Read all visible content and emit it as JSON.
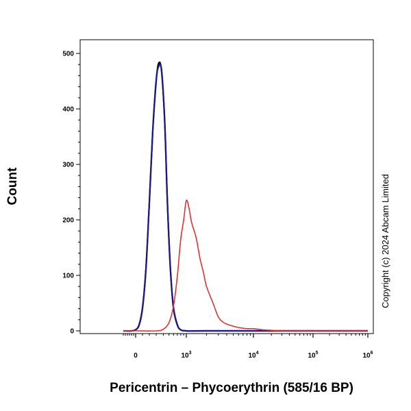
{
  "chart_data": {
    "type": "line",
    "title": "",
    "xlabel": "Pericentrin – Phycoerythrin (585/16 BP)",
    "ylabel": "Count",
    "x_scale": "biexponential",
    "ylim": [
      0,
      520
    ],
    "y_ticks": [
      {
        "value": 0,
        "label": "0"
      },
      {
        "value": 100,
        "label": "100"
      },
      {
        "value": 200,
        "label": "200"
      },
      {
        "value": 300,
        "label": "300"
      },
      {
        "value": 400,
        "label": "400"
      },
      {
        "value": 500,
        "label": "500"
      }
    ],
    "x_ticks": [
      {
        "value": 0,
        "base": "0",
        "exp": ""
      },
      {
        "value": 1000,
        "base": "10",
        "exp": "3"
      },
      {
        "value": 10000,
        "base": "10",
        "exp": "4"
      },
      {
        "value": 100000,
        "base": "10",
        "exp": "5"
      },
      {
        "value": 1000000,
        "base": "10",
        "exp": "6"
      }
    ],
    "series": [
      {
        "color": "#000000",
        "x": [
          -150,
          -50,
          0,
          50,
          100,
          150,
          200,
          250,
          300,
          330,
          370,
          420,
          470,
          530,
          600,
          700,
          800,
          1000,
          2000,
          1000000
        ],
        "y": [
          0,
          0,
          2,
          10,
          40,
          110,
          230,
          360,
          450,
          482,
          470,
          380,
          230,
          110,
          40,
          10,
          2,
          0,
          0,
          0
        ]
      },
      {
        "color": "#1a1a8c",
        "x": [
          -150,
          -50,
          0,
          50,
          100,
          150,
          200,
          250,
          300,
          330,
          370,
          420,
          470,
          530,
          600,
          700,
          800,
          1000,
          2000,
          1000000
        ],
        "y": [
          0,
          0,
          2,
          11,
          42,
          112,
          232,
          362,
          452,
          476,
          472,
          382,
          232,
          112,
          42,
          11,
          2,
          0,
          0,
          0
        ]
      },
      {
        "color": "#e03030",
        "x": [
          -150,
          0,
          300,
          400,
          500,
          600,
          700,
          800,
          900,
          1000,
          1100,
          1200,
          1400,
          1600,
          1800,
          2000,
          2500,
          3000,
          3600,
          4500,
          6000,
          8000,
          10000,
          14000,
          20000,
          30000,
          100000,
          1000000
        ],
        "y": [
          0,
          0,
          0,
          3,
          15,
          45,
          100,
          165,
          200,
          235,
          220,
          195,
          168,
          130,
          105,
          80,
          50,
          25,
          15,
          10,
          6,
          4,
          4,
          2,
          1,
          0,
          0,
          0
        ]
      }
    ]
  },
  "copyright": "Copyright (c) 2024 Abcam Limited"
}
